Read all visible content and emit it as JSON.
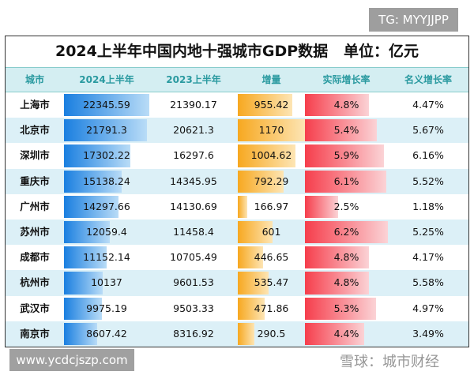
{
  "watermark_tg": "TG: MYYJJPP",
  "watermark_site": "www.ycdcjszp.com",
  "watermark_overlay": "雪球：城市财经",
  "title": "2024上半年中国内地十强城市GDP数据   单位：亿元",
  "headers": [
    "城市",
    "2024上半年",
    "2023上半年",
    "增量",
    "实际增长率",
    "名义增长率"
  ],
  "colors": {
    "header_text": "#2a9aa0",
    "gdp_bar": "#1e88e5",
    "increment_bar": "#f9a825",
    "growth_bar": "#f44352",
    "alt_row": "#dcf0f7"
  },
  "rows": [
    {
      "city": "上海市",
      "gdp2024": "22345.59",
      "gdp2023": "21390.17",
      "increment": "955.42",
      "real_growth": "4.8%",
      "nominal_growth": "4.47%"
    },
    {
      "city": "北京市",
      "gdp2024": "21791.3",
      "gdp2023": "20621.3",
      "increment": "1170",
      "real_growth": "5.4%",
      "nominal_growth": "5.67%"
    },
    {
      "city": "深圳市",
      "gdp2024": "17302.22",
      "gdp2023": "16297.6",
      "increment": "1004.62",
      "real_growth": "5.9%",
      "nominal_growth": "6.16%"
    },
    {
      "city": "重庆市",
      "gdp2024": "15138.24",
      "gdp2023": "14345.95",
      "increment": "792.29",
      "real_growth": "6.1%",
      "nominal_growth": "5.52%"
    },
    {
      "city": "广州市",
      "gdp2024": "14297.66",
      "gdp2023": "14130.69",
      "increment": "166.97",
      "real_growth": "2.5%",
      "nominal_growth": "1.18%"
    },
    {
      "city": "苏州市",
      "gdp2024": "12059.4",
      "gdp2023": "11458.4",
      "increment": "601",
      "real_growth": "6.2%",
      "nominal_growth": "5.25%"
    },
    {
      "city": "成都市",
      "gdp2024": "11152.14",
      "gdp2023": "10705.49",
      "increment": "446.65",
      "real_growth": "4.8%",
      "nominal_growth": "4.17%"
    },
    {
      "city": "杭州市",
      "gdp2024": "10137",
      "gdp2023": "9601.53",
      "increment": "535.47",
      "real_growth": "4.8%",
      "nominal_growth": "5.58%"
    },
    {
      "city": "武汉市",
      "gdp2024": "9975.19",
      "gdp2023": "9503.33",
      "increment": "471.86",
      "real_growth": "5.3%",
      "nominal_growth": "4.97%"
    },
    {
      "city": "南京市",
      "gdp2024": "8607.42",
      "gdp2023": "8316.92",
      "increment": "290.5",
      "real_growth": "4.4%",
      "nominal_growth": "3.49%"
    }
  ]
}
